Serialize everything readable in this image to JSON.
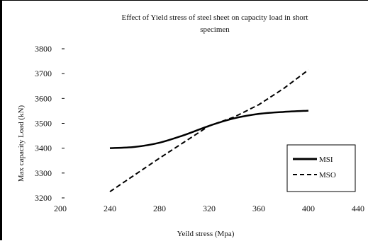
{
  "chart_data": {
    "type": "line",
    "title": "Effect of Yield stress of steel sheet on capacity load in short specimen",
    "xlabel": "Yeild stress (Mpa)",
    "ylabel": "Max capacity Load (kN)",
    "xlim": [
      200,
      440
    ],
    "ylim": [
      3200,
      3800
    ],
    "x_ticks": [
      "200",
      "240",
      "280",
      "320",
      "360",
      "400",
      "440"
    ],
    "y_ticks": [
      "3200",
      "3300",
      "3400",
      "3500",
      "3600",
      "3700",
      "3800"
    ],
    "grid": false,
    "legend_position": "bottom-right",
    "series": [
      {
        "name": "MSI",
        "style": "solid",
        "color": "#000000",
        "points": [
          [
            240,
            3400
          ],
          [
            260,
            3405
          ],
          [
            280,
            3422
          ],
          [
            300,
            3453
          ],
          [
            320,
            3490
          ],
          [
            340,
            3520
          ],
          [
            360,
            3538
          ],
          [
            380,
            3546
          ],
          [
            400,
            3551
          ]
        ]
      },
      {
        "name": "MSO",
        "style": "dashed",
        "color": "#000000",
        "points": [
          [
            240,
            3225
          ],
          [
            280,
            3360
          ],
          [
            320,
            3490
          ],
          [
            340,
            3525
          ],
          [
            360,
            3575
          ],
          [
            380,
            3640
          ],
          [
            400,
            3715
          ]
        ]
      }
    ]
  }
}
